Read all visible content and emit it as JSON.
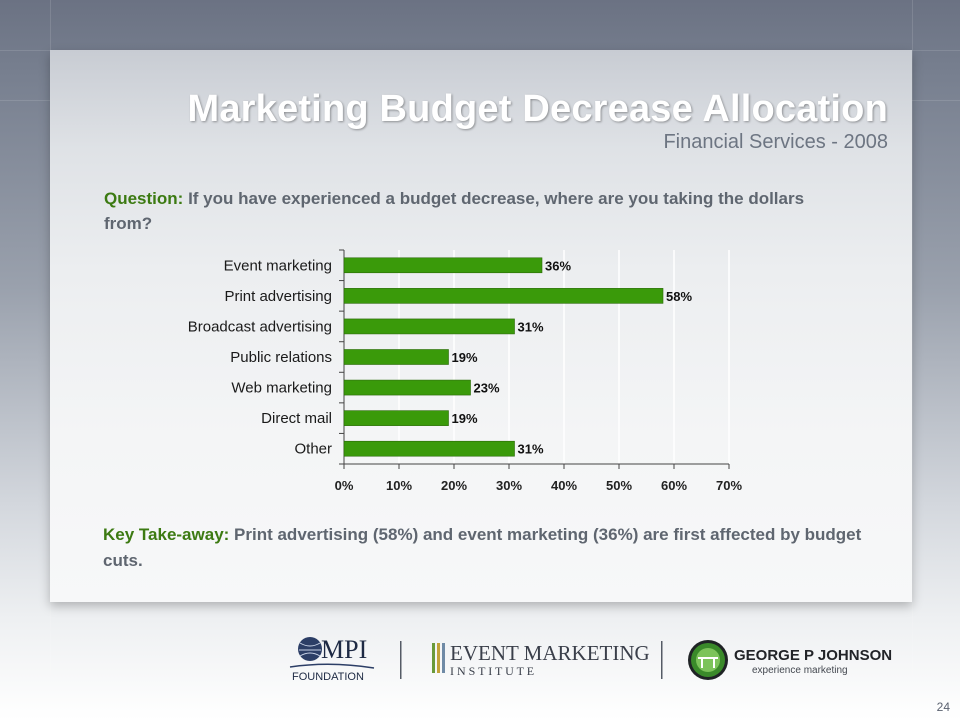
{
  "slide": {
    "title": "Marketing Budget Decrease Allocation",
    "subtitle": "Financial Services - 2008",
    "question_label": "Question:",
    "question_text": " If you have experienced a budget decrease, where are you taking the dollars from?",
    "takeaway_label": "Key Take-away:",
    "takeaway_text": " Print advertising (58%) and event marketing (36%) are first affected by budget cuts.",
    "page_number": "24"
  },
  "logos": {
    "mpi_main": "MPI",
    "mpi_sub": "FOUNDATION",
    "emi_main": "EVENT MARKETING",
    "emi_sub": "I N S T I T U T E",
    "gpj_main": "GEORGE P JOHNSON",
    "gpj_sub": "experience marketing"
  },
  "colors": {
    "bar": "#3a9a0a",
    "accent_label": "#3c7a12"
  },
  "chart_data": {
    "type": "bar",
    "orientation": "horizontal",
    "categories": [
      "Event marketing",
      "Print advertising",
      "Broadcast advertising",
      "Public relations",
      "Web marketing",
      "Direct mail",
      "Other"
    ],
    "values": [
      36,
      58,
      31,
      19,
      23,
      19,
      31
    ],
    "value_labels": [
      "36%",
      "58%",
      "31%",
      "19%",
      "23%",
      "19%",
      "31%"
    ],
    "xlim": [
      0,
      70
    ],
    "xticks": [
      0,
      10,
      20,
      30,
      40,
      50,
      60,
      70
    ],
    "xtick_labels": [
      "0%",
      "10%",
      "20%",
      "30%",
      "40%",
      "50%",
      "60%",
      "70%"
    ],
    "grid": true
  }
}
